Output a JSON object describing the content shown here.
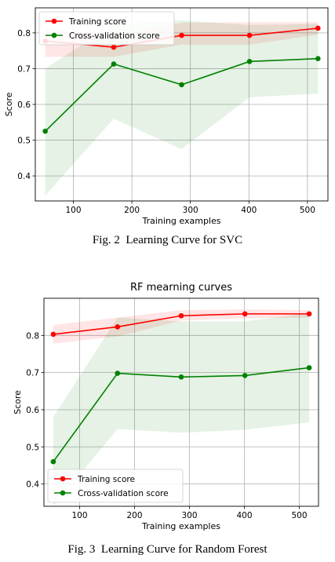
{
  "chart_data": [
    {
      "type": "line",
      "title": "",
      "xlabel": "Training examples",
      "ylabel": "Score",
      "xlim": [
        35,
        535
      ],
      "ylim": [
        0.33,
        0.87
      ],
      "xticks": [
        100,
        200,
        300,
        400,
        500
      ],
      "yticks": [
        0.4,
        0.5,
        0.6,
        0.7,
        0.8
      ],
      "grid": true,
      "legend": "upper-left",
      "series": [
        {
          "name": "Training score",
          "color": "#ff0000",
          "x": [
            52,
            169,
            285,
            401,
            518
          ],
          "y": [
            0.777,
            0.76,
            0.793,
            0.793,
            0.813
          ],
          "band_upper": [
            0.813,
            0.793,
            0.828,
            0.83,
            0.83
          ],
          "band_lower": [
            0.733,
            0.733,
            0.767,
            0.767,
            0.795
          ]
        },
        {
          "name": "Cross-validation score",
          "color": "#008000",
          "x": [
            52,
            169,
            285,
            401,
            518
          ],
          "y": [
            0.525,
            0.713,
            0.655,
            0.72,
            0.728
          ],
          "band_upper": [
            0.7,
            0.825,
            0.835,
            0.822,
            0.825
          ],
          "band_lower": [
            0.345,
            0.56,
            0.475,
            0.62,
            0.63
          ]
        }
      ]
    },
    {
      "type": "line",
      "title": "RF mearning curves",
      "xlabel": "Training examples",
      "ylabel": "Score",
      "xlim": [
        35,
        535
      ],
      "ylim": [
        0.34,
        0.9
      ],
      "xticks": [
        100,
        200,
        300,
        400,
        500
      ],
      "yticks": [
        0.4,
        0.5,
        0.6,
        0.7,
        0.8
      ],
      "grid": true,
      "legend": "lower-left",
      "series": [
        {
          "name": "Training score",
          "color": "#ff0000",
          "x": [
            52,
            169,
            285,
            401,
            518
          ],
          "y": [
            0.803,
            0.823,
            0.853,
            0.858,
            0.858
          ],
          "band_upper": [
            0.828,
            0.848,
            0.868,
            0.87,
            0.868
          ],
          "band_lower": [
            0.778,
            0.797,
            0.84,
            0.846,
            0.848
          ]
        },
        {
          "name": "Cross-validation score",
          "color": "#008000",
          "x": [
            52,
            169,
            285,
            401,
            518
          ],
          "y": [
            0.46,
            0.698,
            0.688,
            0.692,
            0.713
          ],
          "band_upper": [
            0.58,
            0.848,
            0.838,
            0.838,
            0.86
          ],
          "band_lower": [
            0.34,
            0.548,
            0.538,
            0.546,
            0.566
          ]
        }
      ]
    }
  ],
  "captions": {
    "fig2": "Fig. 2  Learning Curve for SVC",
    "fig3": "Fig. 3  Learning Curve for Random Forest"
  }
}
